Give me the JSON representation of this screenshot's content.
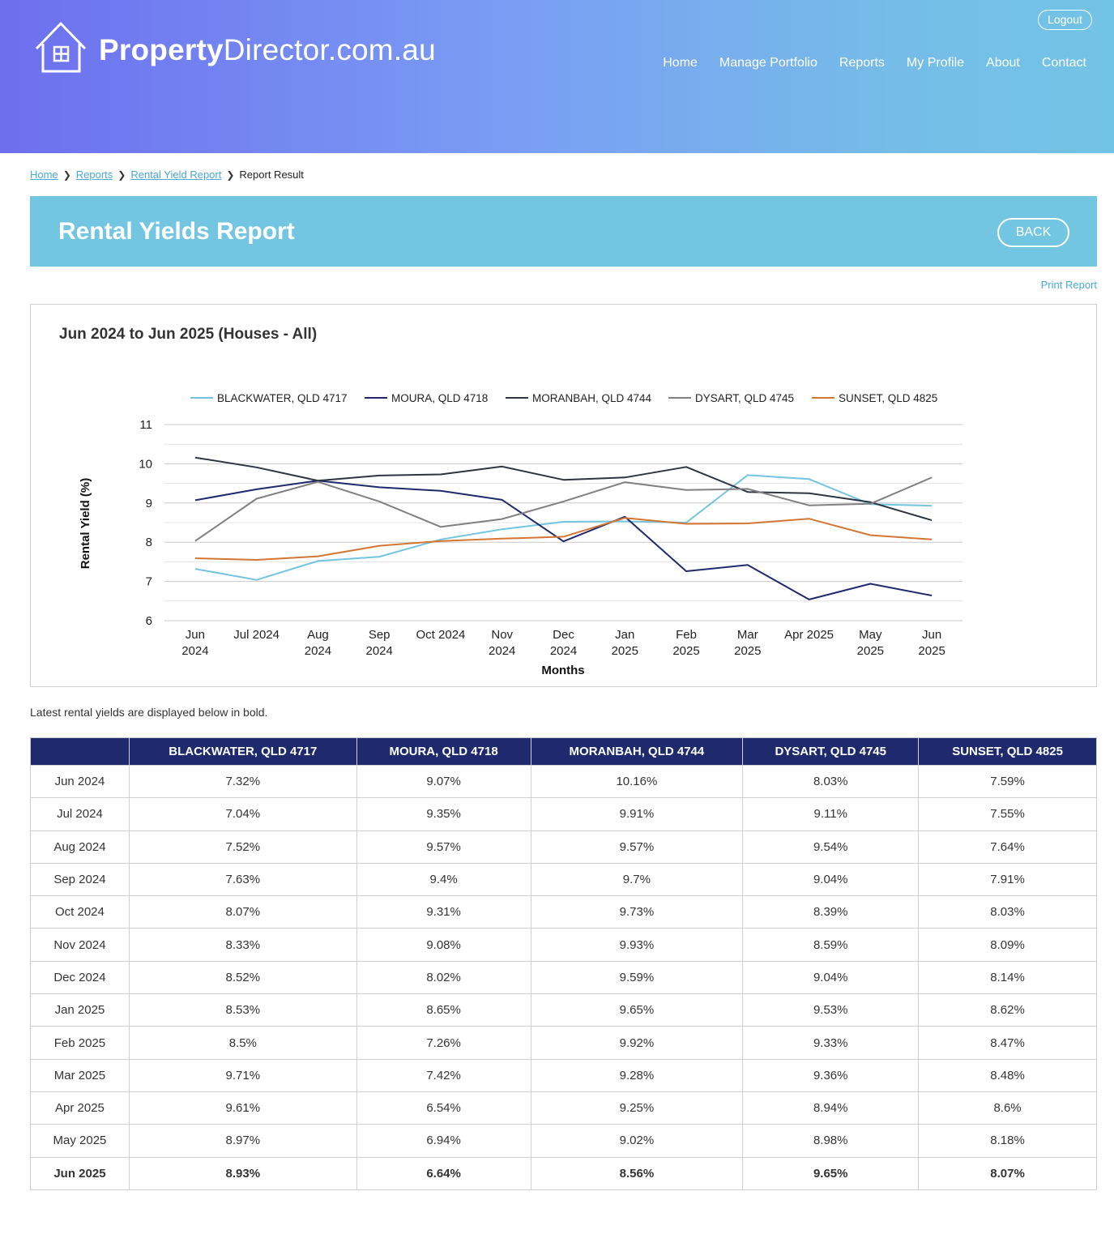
{
  "header": {
    "logo_bold": "Property",
    "logo_rest": "Director.com.au",
    "logout": "Logout",
    "nav": [
      "Home",
      "Manage Portfolio",
      "Reports",
      "My Profile",
      "About",
      "Contact"
    ]
  },
  "breadcrumb": {
    "home": "Home",
    "reports": "Reports",
    "rental_yield_report": "Rental Yield Report",
    "current": "Report Result"
  },
  "page": {
    "title": "Rental Yields Report",
    "back": "BACK",
    "print": "Print Report",
    "note": "Latest rental yields are displayed below in bold."
  },
  "colors": {
    "BLACKWATER": "#72c5e0",
    "MOURA": "#1f2a6e",
    "MORANBAH": "#2d3540",
    "DYSART": "#808080",
    "SUNSET": "#d47532"
  },
  "chart_data": {
    "type": "line",
    "title": "Jun 2024 to Jun 2025 (Houses - All)",
    "xlabel": "Months",
    "ylabel": "Rental Yield (%)",
    "ylim": [
      6,
      11
    ],
    "yticks": [
      6,
      7,
      8,
      9,
      10,
      11
    ],
    "grid": true,
    "legend": "top",
    "categories": [
      [
        "Jun",
        "2024"
      ],
      [
        "Jul 2024"
      ],
      [
        "Aug",
        "2024"
      ],
      [
        "Sep",
        "2024"
      ],
      [
        "Oct 2024"
      ],
      [
        "Nov",
        "2024"
      ],
      [
        "Dec",
        "2024"
      ],
      [
        "Jan",
        "2025"
      ],
      [
        "Feb",
        "2025"
      ],
      [
        "Mar",
        "2025"
      ],
      [
        "Apr 2025"
      ],
      [
        "May",
        "2025"
      ],
      [
        "Jun",
        "2025"
      ]
    ],
    "series": [
      {
        "name": "BLACKWATER, QLD 4717",
        "color": "#72c5e0",
        "values": [
          7.32,
          7.04,
          7.52,
          7.63,
          8.07,
          8.33,
          8.52,
          8.53,
          8.5,
          9.71,
          9.61,
          8.97,
          8.93
        ]
      },
      {
        "name": "MOURA, QLD 4718",
        "color": "#1f2a6e",
        "values": [
          9.07,
          9.35,
          9.57,
          9.4,
          9.31,
          9.08,
          8.02,
          8.65,
          7.26,
          7.42,
          6.54,
          6.94,
          6.64
        ]
      },
      {
        "name": "MORANBAH, QLD 4744",
        "color": "#2d3540",
        "values": [
          10.16,
          9.91,
          9.57,
          9.7,
          9.73,
          9.93,
          9.59,
          9.65,
          9.92,
          9.28,
          9.25,
          9.02,
          8.56
        ]
      },
      {
        "name": "DYSART, QLD 4745",
        "color": "#808080",
        "values": [
          8.03,
          9.11,
          9.54,
          9.04,
          8.39,
          8.59,
          9.04,
          9.53,
          9.33,
          9.36,
          8.94,
          8.98,
          9.65
        ]
      },
      {
        "name": "SUNSET, QLD 4825",
        "color": "#d47532",
        "values": [
          7.59,
          7.55,
          7.64,
          7.91,
          8.03,
          8.09,
          8.14,
          8.62,
          8.47,
          8.48,
          8.6,
          8.18,
          8.07
        ]
      }
    ]
  },
  "table": {
    "headers": [
      "",
      "BLACKWATER, QLD 4717",
      "MOURA, QLD 4718",
      "MORANBAH, QLD 4744",
      "DYSART, QLD 4745",
      "SUNSET, QLD 4825"
    ],
    "rows": [
      [
        "Jun 2024",
        "7.32%",
        "9.07%",
        "10.16%",
        "8.03%",
        "7.59%"
      ],
      [
        "Jul 2024",
        "7.04%",
        "9.35%",
        "9.91%",
        "9.11%",
        "7.55%"
      ],
      [
        "Aug 2024",
        "7.52%",
        "9.57%",
        "9.57%",
        "9.54%",
        "7.64%"
      ],
      [
        "Sep 2024",
        "7.63%",
        "9.4%",
        "9.7%",
        "9.04%",
        "7.91%"
      ],
      [
        "Oct 2024",
        "8.07%",
        "9.31%",
        "9.73%",
        "8.39%",
        "8.03%"
      ],
      [
        "Nov 2024",
        "8.33%",
        "9.08%",
        "9.93%",
        "8.59%",
        "8.09%"
      ],
      [
        "Dec 2024",
        "8.52%",
        "8.02%",
        "9.59%",
        "9.04%",
        "8.14%"
      ],
      [
        "Jan 2025",
        "8.53%",
        "8.65%",
        "9.65%",
        "9.53%",
        "8.62%"
      ],
      [
        "Feb 2025",
        "8.5%",
        "7.26%",
        "9.92%",
        "9.33%",
        "8.47%"
      ],
      [
        "Mar 2025",
        "9.71%",
        "7.42%",
        "9.28%",
        "9.36%",
        "8.48%"
      ],
      [
        "Apr 2025",
        "9.61%",
        "6.54%",
        "9.25%",
        "8.94%",
        "8.6%"
      ],
      [
        "May 2025",
        "8.97%",
        "6.94%",
        "9.02%",
        "8.98%",
        "8.18%"
      ],
      [
        "Jun 2025",
        "8.93%",
        "6.64%",
        "8.56%",
        "9.65%",
        "8.07%"
      ]
    ]
  }
}
